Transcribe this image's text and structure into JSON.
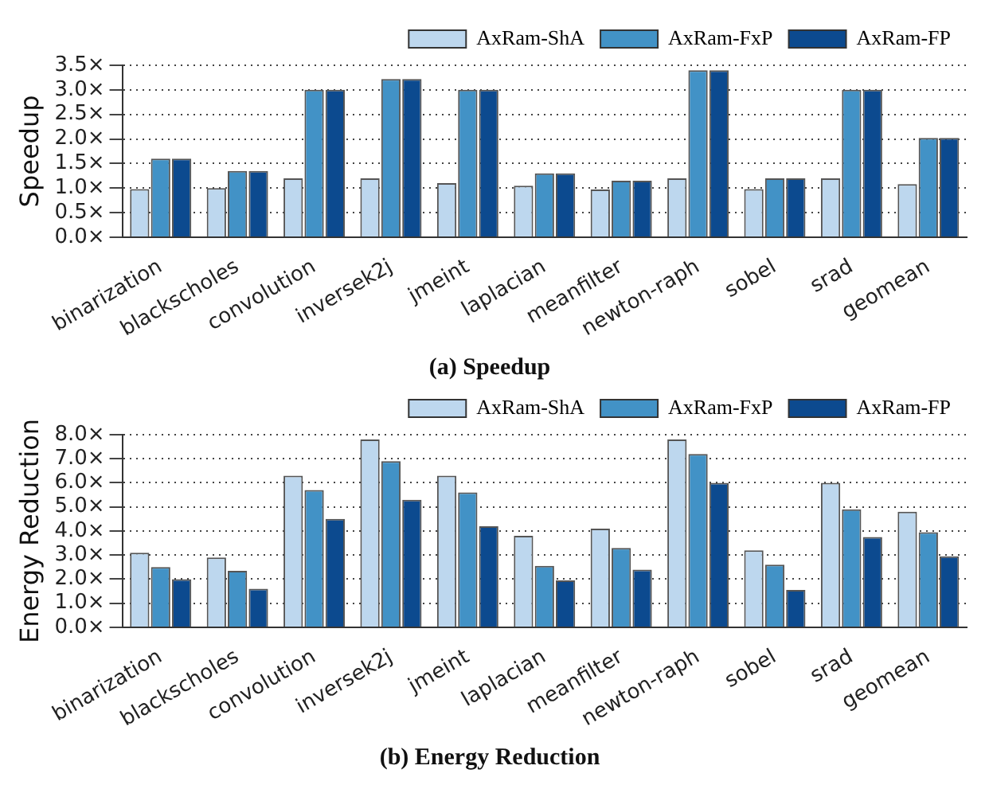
{
  "chart_data": [
    {
      "type": "bar",
      "title": "(a) Speedup",
      "ylabel": "Speedup",
      "categories": [
        "binarization",
        "blackscholes",
        "convolution",
        "inversek2j",
        "jmeint",
        "laplacian",
        "meanfilter",
        "newton-raph",
        "sobel",
        "srad",
        "geomean"
      ],
      "series": [
        {
          "name": "AxRam-ShA",
          "color": "#bdd7ee",
          "values": [
            0.98,
            1.0,
            1.2,
            1.2,
            1.1,
            1.05,
            0.97,
            1.2,
            0.98,
            1.2,
            1.08
          ]
        },
        {
          "name": "AxRam-FxP",
          "color": "#4292c6",
          "values": [
            1.6,
            1.35,
            3.0,
            3.22,
            3.0,
            1.3,
            1.15,
            3.4,
            1.2,
            3.0,
            2.02
          ]
        },
        {
          "name": "AxRam-FP",
          "color": "#0c4a8f",
          "values": [
            1.6,
            1.35,
            3.0,
            3.22,
            3.0,
            1.3,
            1.15,
            3.4,
            1.2,
            3.0,
            2.02
          ]
        }
      ],
      "ylim": [
        0,
        3.5
      ],
      "yticks": [
        {
          "value": 0,
          "label": "0.0×"
        },
        {
          "value": 0.5,
          "label": "0.5×"
        },
        {
          "value": 1,
          "label": "1.0×"
        },
        {
          "value": 1.5,
          "label": "1.5×"
        },
        {
          "value": 2,
          "label": "2.0×"
        },
        {
          "value": 2.5,
          "label": "2.5×"
        },
        {
          "value": 3,
          "label": "3.0×"
        },
        {
          "value": 3.5,
          "label": "3.5×"
        }
      ],
      "grid": "y",
      "legend": "top right"
    },
    {
      "type": "bar",
      "title": "(b) Energy Reduction",
      "ylabel": "Energy Reduction",
      "categories": [
        "binarization",
        "blackscholes",
        "convolution",
        "inversek2j",
        "jmeint",
        "laplacian",
        "meanfilter",
        "newton-raph",
        "sobel",
        "srad",
        "geomean"
      ],
      "series": [
        {
          "name": "AxRam-ShA",
          "color": "#bdd7ee",
          "values": [
            3.1,
            2.9,
            6.3,
            7.8,
            6.3,
            3.8,
            4.1,
            7.8,
            3.2,
            6.0,
            4.8
          ]
        },
        {
          "name": "AxRam-FxP",
          "color": "#4292c6",
          "values": [
            2.5,
            2.35,
            5.7,
            6.9,
            5.6,
            2.55,
            3.3,
            7.2,
            2.6,
            4.9,
            3.95
          ]
        },
        {
          "name": "AxRam-FP",
          "color": "#0c4a8f",
          "values": [
            2.0,
            1.6,
            4.5,
            5.3,
            4.2,
            1.95,
            2.4,
            6.0,
            1.55,
            3.75,
            2.95
          ]
        }
      ],
      "ylim": [
        0,
        8
      ],
      "yticks": [
        {
          "value": 0,
          "label": "0.0×"
        },
        {
          "value": 1,
          "label": "1.0×"
        },
        {
          "value": 2,
          "label": "2.0×"
        },
        {
          "value": 3,
          "label": "3.0×"
        },
        {
          "value": 4,
          "label": "4.0×"
        },
        {
          "value": 5,
          "label": "5.0×"
        },
        {
          "value": 6,
          "label": "6.0×"
        },
        {
          "value": 7,
          "label": "7.0×"
        },
        {
          "value": 8,
          "label": "8.0×"
        }
      ],
      "grid": "y",
      "legend": "top right"
    }
  ]
}
